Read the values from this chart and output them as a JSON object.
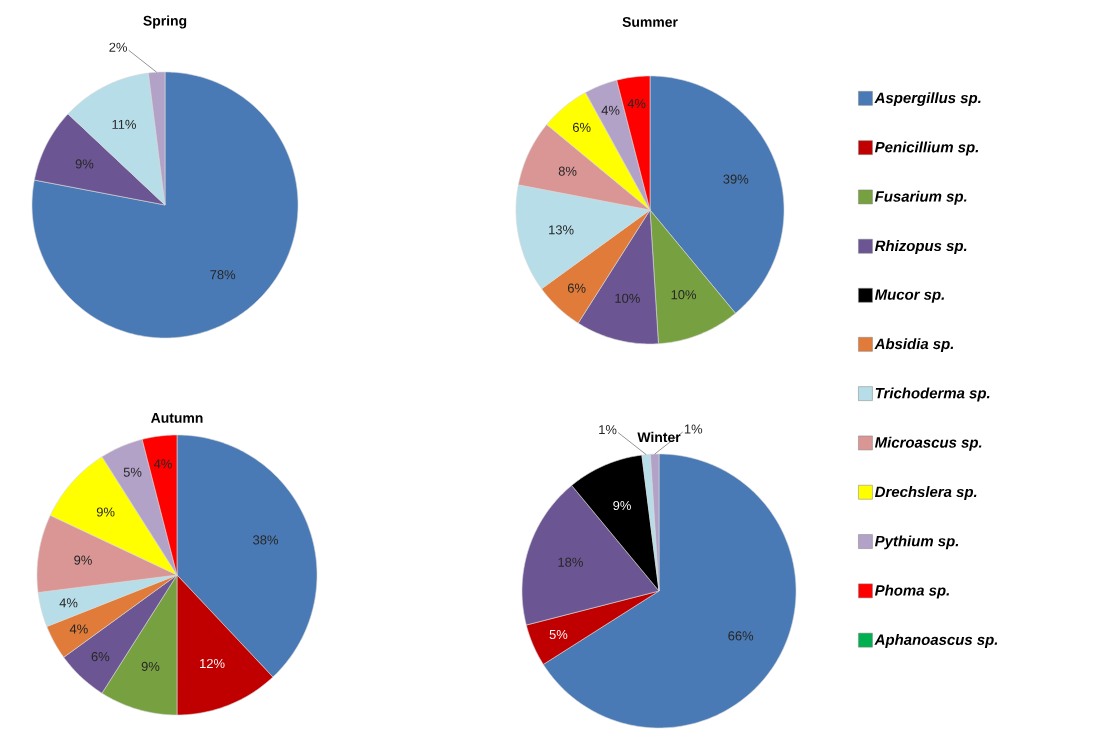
{
  "chart_data": [
    {
      "type": "pie",
      "title": "Spring",
      "categories": [
        null,
        null,
        null,
        null,
        null,
        null,
        null,
        null,
        null,
        null,
        null,
        null
      ],
      "values": [
        78,
        0,
        0,
        9,
        0,
        0,
        11,
        0,
        0,
        2,
        0,
        0
      ],
      "colors": [
        "#4a7ab5",
        "#c00000",
        "#77a040",
        "#6b5592",
        "#000000",
        "#e07b39",
        "#b7dde8",
        "#d99694",
        "#ffff00",
        "#b3a2c7",
        "#ff0000",
        "#00b050"
      ],
      "value_labels": [
        "78%",
        null,
        null,
        "9%",
        null,
        null,
        "11%",
        null,
        null,
        "2%",
        null,
        null
      ]
    },
    {
      "type": "pie",
      "title": "Summer",
      "categories": [
        "Aspergillus sp.",
        "Penicillium sp.",
        "Fusarium sp.",
        "Rhizopus sp.",
        "Mucor sp.",
        "Absidia sp.",
        "Trichoderma sp.",
        "Microascus sp.",
        "Drechslera sp.",
        "Pythium sp.",
        "Phoma sp.",
        "Aphanoascus sp."
      ],
      "values": [
        39,
        0,
        10,
        10,
        0,
        6,
        13,
        8,
        6,
        4,
        4,
        0
      ],
      "colors": [
        "#4a7ab5",
        "#c00000",
        "#77a040",
        "#6b5592",
        "#000000",
        "#e07b39",
        "#b7dde8",
        "#d99694",
        "#ffff00",
        "#b3a2c7",
        "#ff0000",
        "#00b050"
      ],
      "value_labels": [
        "39%",
        null,
        "10%",
        "10%",
        null,
        "6%",
        "13%",
        "8%",
        "6%",
        "4%",
        "4%",
        null
      ],
      "legend": "right"
    },
    {
      "type": "pie",
      "title": "Autumn",
      "categories": [
        null,
        null,
        null,
        null,
        null,
        null,
        null,
        null,
        null,
        null,
        null,
        null
      ],
      "values": [
        38,
        12,
        9,
        6,
        0,
        4,
        4,
        9,
        9,
        5,
        4,
        0
      ],
      "colors": [
        "#4a7ab5",
        "#c00000",
        "#77a040",
        "#6b5592",
        "#000000",
        "#e07b39",
        "#b7dde8",
        "#d99694",
        "#ffff00",
        "#b3a2c7",
        "#ff0000",
        "#00b050"
      ],
      "value_labels": [
        "38%",
        "12%",
        "9%",
        "6%",
        null,
        "4%",
        "4%",
        "9%",
        "9%",
        "5%",
        "4%",
        null
      ]
    },
    {
      "type": "pie",
      "title": "Winter",
      "categories": [
        null,
        null,
        null,
        null,
        null,
        null,
        null,
        null,
        null,
        null,
        null,
        null
      ],
      "values": [
        66,
        5,
        0,
        18,
        9,
        0,
        1,
        0,
        0,
        1,
        0,
        0
      ],
      "colors": [
        "#4a7ab5",
        "#c00000",
        "#77a040",
        "#6b5592",
        "#000000",
        "#e07b39",
        "#b7dde8",
        "#d99694",
        "#ffff00",
        "#b3a2c7",
        "#ff0000",
        "#00b050"
      ],
      "value_labels": [
        "66%",
        "5%",
        null,
        "18%",
        "9%",
        null,
        "1%",
        null,
        null,
        "1%",
        null,
        null
      ]
    }
  ]
}
